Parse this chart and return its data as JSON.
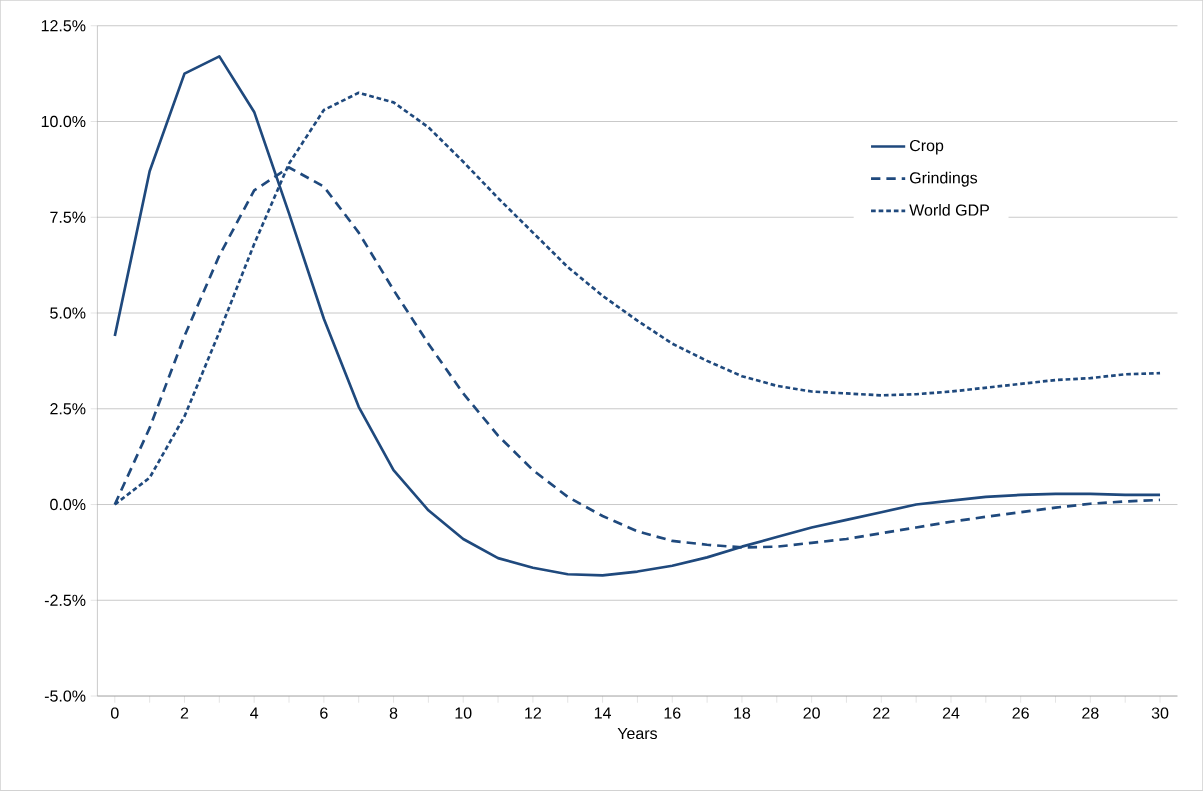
{
  "chart_data": {
    "type": "line",
    "xlabel": "Years",
    "x": [
      0,
      1,
      2,
      3,
      4,
      5,
      6,
      7,
      8,
      9,
      10,
      11,
      12,
      13,
      14,
      15,
      16,
      17,
      18,
      19,
      20,
      21,
      22,
      23,
      24,
      25,
      26,
      27,
      28,
      29,
      30
    ],
    "series": [
      {
        "name": "Crop",
        "color": "#1f497d",
        "line_style": "solid",
        "values": [
          4.4,
          8.7,
          11.25,
          11.7,
          10.25,
          7.6,
          4.85,
          2.55,
          0.9,
          -0.15,
          -0.9,
          -1.4,
          -1.65,
          -1.82,
          -1.85,
          -1.75,
          -1.6,
          -1.38,
          -1.1,
          -0.85,
          -0.6,
          -0.4,
          -0.2,
          0.0,
          0.1,
          0.2,
          0.25,
          0.28,
          0.28,
          0.25,
          0.25
        ]
      },
      {
        "name": "Grindings",
        "color": "#1f497d",
        "line_style": "dashed",
        "values": [
          0,
          2.0,
          4.4,
          6.5,
          8.2,
          8.8,
          8.3,
          7.1,
          5.6,
          4.2,
          2.9,
          1.8,
          0.9,
          0.2,
          -0.3,
          -0.7,
          -0.95,
          -1.05,
          -1.12,
          -1.1,
          -1.0,
          -0.9,
          -0.75,
          -0.6,
          -0.45,
          -0.32,
          -0.2,
          -0.08,
          0.02,
          0.08,
          0.12
        ]
      },
      {
        "name": "World GDP",
        "color": "#1f497d",
        "line_style": "dotted",
        "values": [
          0,
          0.7,
          2.3,
          4.5,
          6.8,
          8.9,
          10.3,
          10.75,
          10.5,
          9.85,
          8.95,
          8.0,
          7.1,
          6.2,
          5.45,
          4.8,
          4.2,
          3.75,
          3.35,
          3.1,
          2.95,
          2.9,
          2.85,
          2.88,
          2.95,
          3.05,
          3.15,
          3.25,
          3.3,
          3.4,
          3.43
        ]
      }
    ],
    "xlim": [
      -0.5,
      30.5
    ],
    "xticks": [
      0,
      {
        "value": 1,
        "label": null
      },
      2,
      {
        "value": 3,
        "label": null
      },
      4,
      {
        "value": 5,
        "label": null
      },
      6,
      {
        "value": 7,
        "label": null
      },
      8,
      {
        "value": 9,
        "label": null
      },
      10,
      {
        "value": 11,
        "label": null
      },
      12,
      {
        "value": 13,
        "label": null
      },
      14,
      {
        "value": 15,
        "label": null
      },
      16,
      {
        "value": 17,
        "label": null
      },
      18,
      {
        "value": 19,
        "label": null
      },
      20,
      {
        "value": 21,
        "label": null
      },
      22,
      {
        "value": 23,
        "label": null
      },
      24,
      {
        "value": 25,
        "label": null
      },
      26,
      {
        "value": 27,
        "label": null
      },
      28,
      {
        "value": 29,
        "label": null
      },
      30
    ],
    "ylim": [
      -5,
      12.5
    ],
    "yticks": [
      {
        "value": -5,
        "label": "-5.0%"
      },
      {
        "value": -2.5,
        "label": "-2.5%"
      },
      {
        "value": 0,
        "label": "0.0%"
      },
      {
        "value": 2.5,
        "label": "2.5%"
      },
      {
        "value": 5,
        "label": "5.0%"
      },
      {
        "value": 7.5,
        "label": "7.5%"
      },
      {
        "value": 10,
        "label": "10.0%"
      },
      {
        "value": 12.5,
        "label": "12.5%"
      }
    ],
    "grid": "y",
    "legend": "top right",
    "marker": "none"
  }
}
